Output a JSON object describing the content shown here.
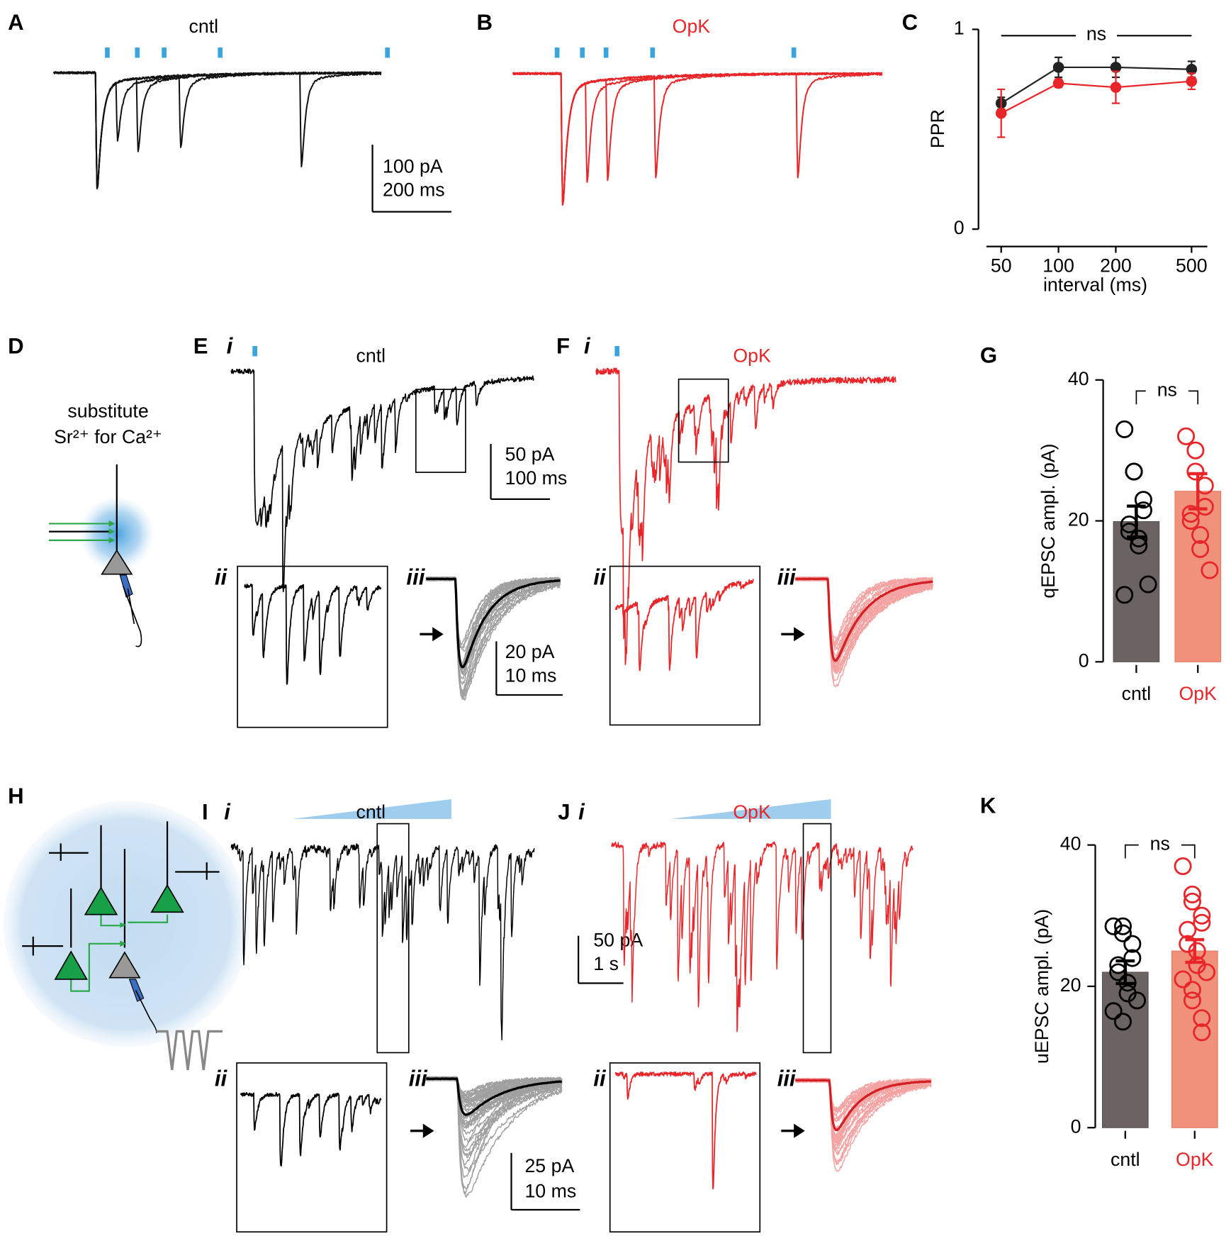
{
  "panels": [
    {
      "label": "A",
      "title": "cntl",
      "color": "#000000"
    },
    {
      "label": "B",
      "title": "OpK",
      "color": "#e8262a"
    },
    {
      "label": "C"
    },
    {
      "label": "D",
      "text": [
        "substitute",
        "Sr²⁺ for Ca²⁺"
      ]
    },
    {
      "label": "E",
      "sub": [
        "i",
        "ii",
        "iii"
      ],
      "title": "cntl",
      "color": "#000000"
    },
    {
      "label": "F",
      "sub": [
        "i",
        "ii",
        "iii"
      ],
      "title": "OpK",
      "color": "#e8262a"
    },
    {
      "label": "G"
    },
    {
      "label": "H"
    },
    {
      "label": "I",
      "sub": [
        "i",
        "ii",
        "iii"
      ],
      "title": "cntl",
      "color": "#000000"
    },
    {
      "label": "J",
      "sub": [
        "i",
        "ii",
        "iii"
      ],
      "title": "OpK",
      "color": "#e8262a"
    },
    {
      "label": "K"
    }
  ],
  "scale_bars": [
    [
      "100 pA",
      "200 ms"
    ],
    [
      "50 pA",
      "100 ms"
    ],
    [
      "20 pA",
      "10 ms"
    ],
    [
      "50 pA",
      "1 s"
    ],
    [
      "25 pA",
      "10 ms"
    ]
  ],
  "chart_data": [
    {
      "type": "line",
      "ylabel": "PPR",
      "xlabel": "interval (ms)",
      "annotation": "ns",
      "x": [
        50,
        100,
        200,
        500
      ],
      "xlim": [
        38,
        605
      ],
      "xlog": true,
      "xticks": [
        50,
        100,
        200,
        500
      ],
      "ylim": [
        0,
        1
      ],
      "yticks": [
        0,
        1
      ],
      "series": [
        {
          "color": "#222222",
          "values": [
            0.63,
            0.81,
            0.81,
            0.8
          ],
          "errors": [
            0.03,
            0.05,
            0.05,
            0.04
          ]
        },
        {
          "color": "#e8262a",
          "values": [
            0.58,
            0.73,
            0.71,
            0.74
          ],
          "errors": [
            0.12,
            0.02,
            0.08,
            0.04
          ]
        }
      ]
    },
    {
      "type": "bar",
      "ylabel": "qEPSC ampl. (pA)",
      "annotation": "ns",
      "categories": [
        "cntl",
        "OpK"
      ],
      "values": [
        19.9,
        24.2
      ],
      "errors": [
        2.2,
        2.5
      ],
      "colors": [
        "#6b6361",
        "#f0927b"
      ],
      "marker_colors": [
        "#000000",
        "#e8262a"
      ],
      "points": [
        [
          33,
          27,
          27,
          23,
          21.5,
          19.5,
          18.5,
          17.5,
          16.5,
          11,
          9.5
        ],
        [
          32,
          30,
          27,
          25,
          22,
          21,
          20,
          18,
          16,
          13
        ]
      ],
      "ylim": [
        0,
        40
      ],
      "yticks": [
        0,
        20,
        40
      ]
    },
    {
      "type": "bar",
      "ylabel": "uEPSC ampl. (pA)",
      "annotation": "ns",
      "categories": [
        "cntl",
        "OpK"
      ],
      "values": [
        22,
        25
      ],
      "errors": [
        1.6,
        1.6
      ],
      "colors": [
        "#6b6361",
        "#f0927b"
      ],
      "marker_colors": [
        "#000000",
        "#e8262a"
      ],
      "points": [
        [
          28.5,
          28.5,
          27.5,
          26,
          24,
          23,
          22,
          20.5,
          19,
          18,
          16.5,
          15
        ],
        [
          37,
          33,
          32,
          30,
          29,
          28,
          26,
          25,
          23,
          22,
          21,
          19.5,
          18,
          15.5,
          13.5
        ]
      ],
      "ylim": [
        0,
        40
      ],
      "yticks": [
        0,
        20,
        40
      ]
    }
  ]
}
